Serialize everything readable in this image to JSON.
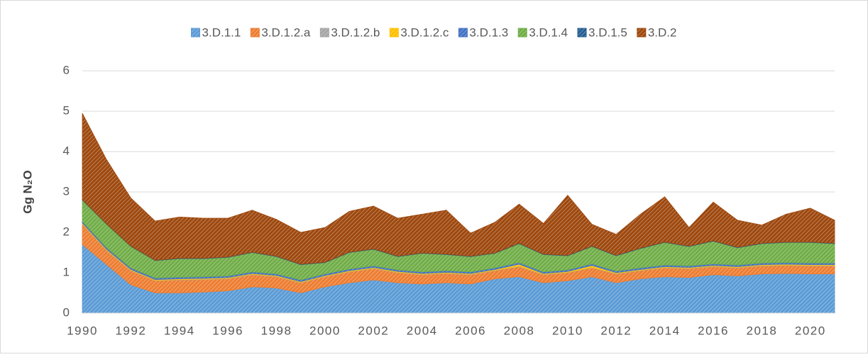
{
  "chart_data": {
    "type": "area",
    "stacked": true,
    "y_label": "Gg N₂O",
    "x": [
      1990,
      1991,
      1992,
      1993,
      1994,
      1995,
      1996,
      1997,
      1998,
      1999,
      2000,
      2001,
      2002,
      2003,
      2004,
      2005,
      2006,
      2007,
      2008,
      2009,
      2010,
      2011,
      2012,
      2013,
      2014,
      2015,
      2016,
      2017,
      2018,
      2019,
      2020,
      2021
    ],
    "xlim": [
      1990,
      2021
    ],
    "xticks": [
      1990,
      1992,
      1994,
      1996,
      1998,
      2000,
      2002,
      2004,
      2006,
      2008,
      2010,
      2012,
      2014,
      2016,
      2018,
      2020
    ],
    "ylim": [
      0,
      6
    ],
    "yticks": [
      0,
      1,
      2,
      3,
      4,
      5,
      6
    ],
    "grid": true,
    "legend": "top",
    "pattern": "hatch",
    "series": [
      {
        "name": "3.D.1.1",
        "color": "#5b9bd5",
        "values": [
          1.7,
          1.2,
          0.7,
          0.5,
          0.5,
          0.52,
          0.55,
          0.65,
          0.62,
          0.5,
          0.65,
          0.75,
          0.82,
          0.75,
          0.72,
          0.75,
          0.72,
          0.85,
          0.9,
          0.75,
          0.8,
          0.9,
          0.75,
          0.85,
          0.9,
          0.88,
          0.95,
          0.92,
          0.97,
          0.98,
          0.97,
          0.97
        ]
      },
      {
        "name": "3.D.1.2.a",
        "color": "#ed7d31",
        "values": [
          0.5,
          0.35,
          0.35,
          0.3,
          0.32,
          0.31,
          0.3,
          0.3,
          0.28,
          0.25,
          0.25,
          0.27,
          0.28,
          0.25,
          0.23,
          0.23,
          0.23,
          0.2,
          0.25,
          0.2,
          0.2,
          0.22,
          0.22,
          0.2,
          0.22,
          0.22,
          0.2,
          0.2,
          0.2,
          0.2,
          0.2,
          0.2
        ]
      },
      {
        "name": "3.D.1.2.b",
        "color": "#a5a5a5",
        "values": [
          0.01,
          0.01,
          0.01,
          0.01,
          0.01,
          0.01,
          0.01,
          0.01,
          0.01,
          0.01,
          0.01,
          0.01,
          0.01,
          0.01,
          0.01,
          0.01,
          0.01,
          0.01,
          0.01,
          0.01,
          0.01,
          0.01,
          0.01,
          0.01,
          0.01,
          0.01,
          0.01,
          0.01,
          0.01,
          0.01,
          0.01,
          0.01
        ]
      },
      {
        "name": "3.D.1.2.c",
        "color": "#ffc000",
        "values": [
          0.02,
          0.02,
          0.02,
          0.02,
          0.02,
          0.02,
          0.02,
          0.02,
          0.02,
          0.02,
          0.02,
          0.02,
          0.02,
          0.02,
          0.02,
          0.02,
          0.02,
          0.02,
          0.05,
          0.02,
          0.02,
          0.05,
          0.02,
          0.02,
          0.02,
          0.02,
          0.02,
          0.02,
          0.02,
          0.02,
          0.02,
          0.02
        ]
      },
      {
        "name": "3.D.1.3",
        "color": "#4472c4",
        "values": [
          0.04,
          0.04,
          0.04,
          0.04,
          0.04,
          0.04,
          0.04,
          0.04,
          0.04,
          0.04,
          0.04,
          0.04,
          0.04,
          0.04,
          0.04,
          0.04,
          0.04,
          0.04,
          0.04,
          0.04,
          0.04,
          0.04,
          0.04,
          0.04,
          0.04,
          0.04,
          0.04,
          0.04,
          0.04,
          0.04,
          0.04,
          0.04
        ]
      },
      {
        "name": "3.D.1.4",
        "color": "#70ad47",
        "values": [
          0.53,
          0.58,
          0.53,
          0.43,
          0.46,
          0.45,
          0.46,
          0.48,
          0.43,
          0.38,
          0.28,
          0.41,
          0.41,
          0.33,
          0.46,
          0.4,
          0.38,
          0.36,
          0.47,
          0.43,
          0.35,
          0.43,
          0.38,
          0.48,
          0.56,
          0.48,
          0.56,
          0.43,
          0.48,
          0.5,
          0.51,
          0.48
        ]
      },
      {
        "name": "3.D.1.5",
        "color": "#255e91",
        "values": [
          0.01,
          0.01,
          0.01,
          0.01,
          0.01,
          0.01,
          0.01,
          0.01,
          0.01,
          0.01,
          0.01,
          0.01,
          0.01,
          0.01,
          0.01,
          0.01,
          0.01,
          0.01,
          0.01,
          0.01,
          0.01,
          0.01,
          0.01,
          0.01,
          0.01,
          0.01,
          0.01,
          0.01,
          0.01,
          0.01,
          0.01,
          0.01
        ]
      },
      {
        "name": "3.D.2",
        "color": "#9e480e",
        "values": [
          2.14,
          1.59,
          1.19,
          0.97,
          1.02,
          0.99,
          0.96,
          1.04,
          0.91,
          0.79,
          0.86,
          1.01,
          1.06,
          0.94,
          0.96,
          1.09,
          0.57,
          0.76,
          0.97,
          0.76,
          1.49,
          0.54,
          0.52,
          0.84,
          1.12,
          0.46,
          0.96,
          0.67,
          0.45,
          0.69,
          0.84,
          0.57
        ]
      }
    ]
  }
}
